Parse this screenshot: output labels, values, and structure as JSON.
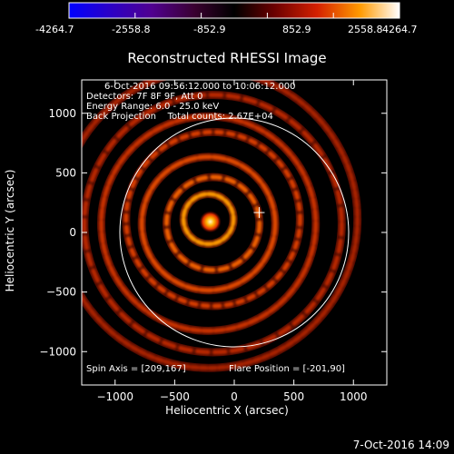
{
  "colorbar": {
    "tick_labels": [
      "-4264.7",
      "-2558.8",
      "-852.9",
      "852.9",
      "2558.8",
      "4264.7"
    ],
    "min": -4264.7,
    "max": 4264.7
  },
  "plot": {
    "title": "Reconstructed RHESSI Image",
    "info_lines": [
      "6-Oct-2016 09:56:12.000 to 10:06:12.000",
      "Detectors: 7F 8F 9F, Att 0",
      "Energy Range: 6.0 - 25.0 keV",
      "Back Projection    Total counts: 2.67E+04"
    ],
    "spin_axis": "Spin Axis = [209,167]",
    "flare_position": "Flare Position = [-201,90]",
    "footer_date": "7-Oct-2016 14:09"
  },
  "chart_data": {
    "type": "heatmap",
    "title": "Reconstructed RHESSI Image",
    "xlabel": "Heliocentric X (arcsec)",
    "ylabel": "Heliocentric Y (arcsec)",
    "xlim": [
      -1280,
      1280
    ],
    "ylim": [
      -1280,
      1280
    ],
    "x_ticks": [
      -1000,
      -500,
      0,
      500,
      1000
    ],
    "y_ticks": [
      -1000,
      -500,
      0,
      500,
      1000
    ],
    "x_tick_labels": [
      "−1000",
      "−500",
      "0",
      "500",
      "1000"
    ],
    "y_tick_labels": [
      "−1000",
      "−500",
      "0",
      "500",
      "1000"
    ],
    "solar_limb_radius_arcsec": 960,
    "spin_axis": [
      209,
      167
    ],
    "flare_position": [
      -201,
      90
    ],
    "peak_source": {
      "x": -201,
      "y": 90
    },
    "ring_radii_arcsec": [
      210,
      390,
      560,
      730,
      900,
      1080,
      1250
    ],
    "colormap": "red-temperature",
    "legend": "none",
    "grid": false
  }
}
